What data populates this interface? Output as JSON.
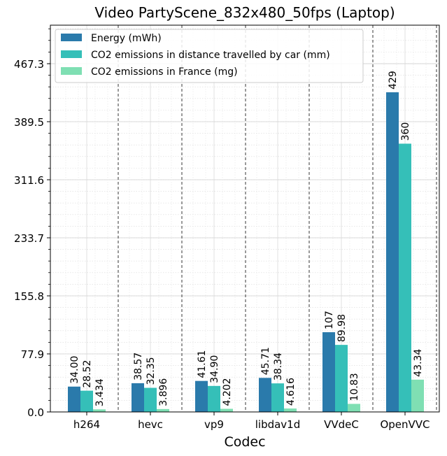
{
  "chart_data": {
    "type": "bar",
    "title": "Video PartyScene_832x480_50fps (Laptop)",
    "xlabel": "Codec",
    "ylabel": "",
    "categories": [
      "h264",
      "hevc",
      "vp9",
      "libdav1d",
      "VVdeC",
      "OpenVVC"
    ],
    "series": [
      {
        "name": "Energy (mWh)",
        "color": "#2a7aab",
        "values": [
          34.0,
          38.57,
          41.61,
          45.71,
          107,
          429
        ],
        "labels": [
          "34.00",
          "38.57",
          "41.61",
          "45.71",
          "107",
          "429"
        ]
      },
      {
        "name": "CO2 emissions in distance travelled by car (mm)",
        "color": "#35bfb8",
        "values": [
          28.52,
          32.35,
          34.9,
          38.34,
          89.98,
          360
        ],
        "labels": [
          "28.52",
          "32.35",
          "34.90",
          "38.34",
          "89.98",
          "360"
        ]
      },
      {
        "name": "CO2 emissions in France (mg)",
        "color": "#7fdfb3",
        "values": [
          3.434,
          3.896,
          4.202,
          4.616,
          10.83,
          43.34
        ],
        "labels": [
          "3.434",
          "3.896",
          "4.202",
          "4.616",
          "10.83",
          "43.34"
        ]
      }
    ],
    "yticks": [
      0.0,
      77.9,
      155.8,
      233.7,
      311.6,
      389.5,
      467.3
    ],
    "ytick_labels": [
      "0.0",
      "77.9",
      "155.8",
      "233.7",
      "311.6",
      "389.5",
      "467.3"
    ],
    "ylim": [
      0,
      519
    ],
    "grid": true,
    "legend_position": "top-left"
  }
}
